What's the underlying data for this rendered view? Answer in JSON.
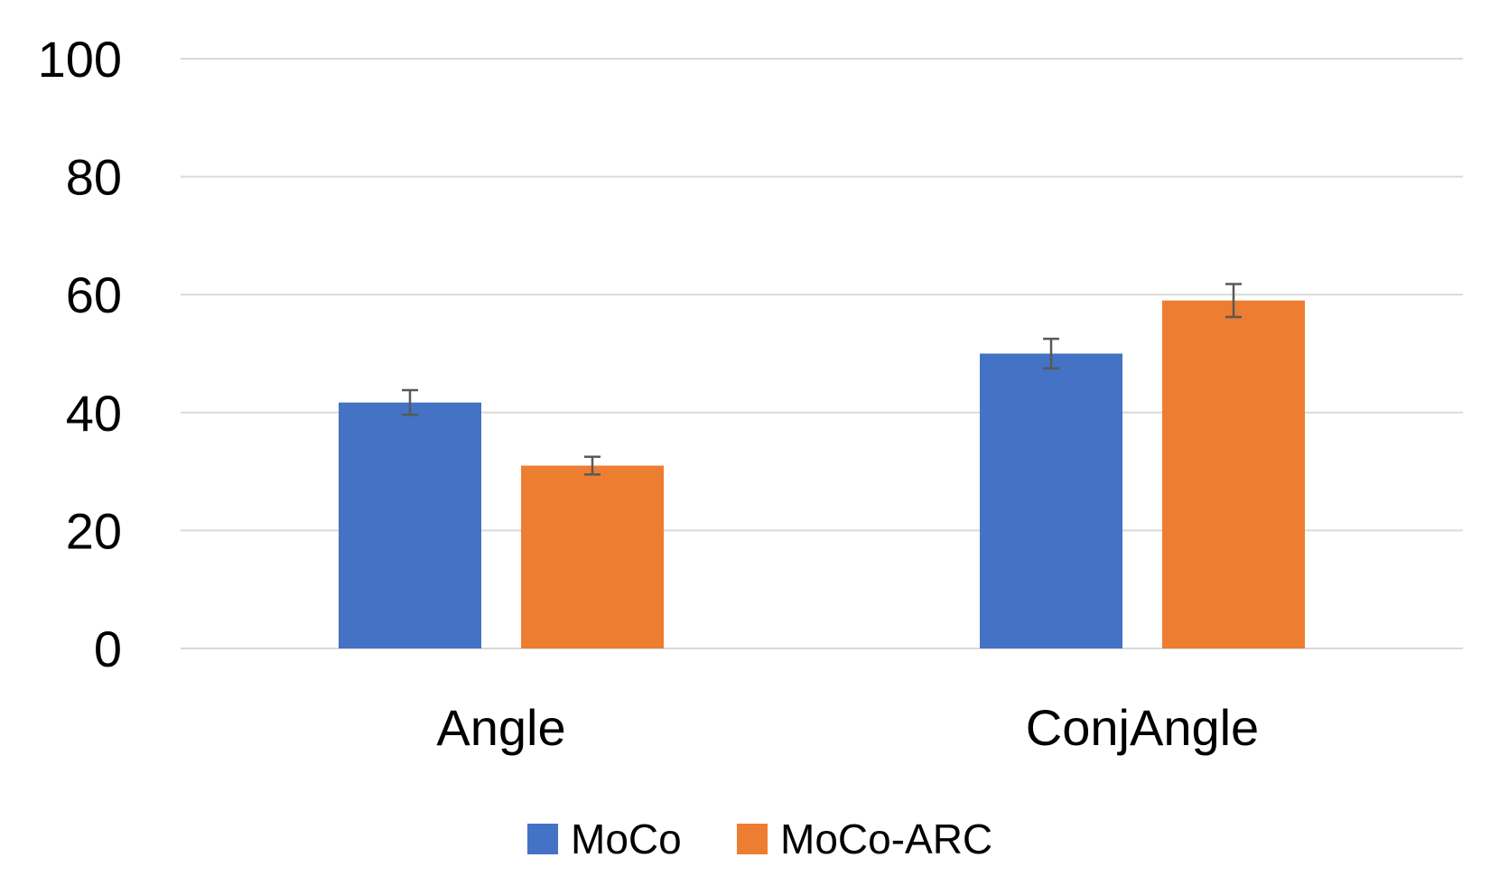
{
  "chart_data": {
    "type": "bar",
    "title": "",
    "xlabel": "",
    "ylabel": "",
    "categories": [
      "Angle",
      "ConjAngle"
    ],
    "series": [
      {
        "name": "MoCo",
        "color": "#4472c4",
        "values": [
          41.7,
          50.0
        ],
        "errors": [
          2.1,
          2.5
        ]
      },
      {
        "name": "MoCo-ARC",
        "color": "#ed7d31",
        "values": [
          31.0,
          59.0
        ],
        "errors": [
          1.5,
          2.8
        ]
      }
    ],
    "ylim": [
      0,
      100
    ],
    "yticks": [
      "0",
      "20",
      "40",
      "60",
      "80",
      "100"
    ],
    "grid": true,
    "legend": "bottom"
  }
}
